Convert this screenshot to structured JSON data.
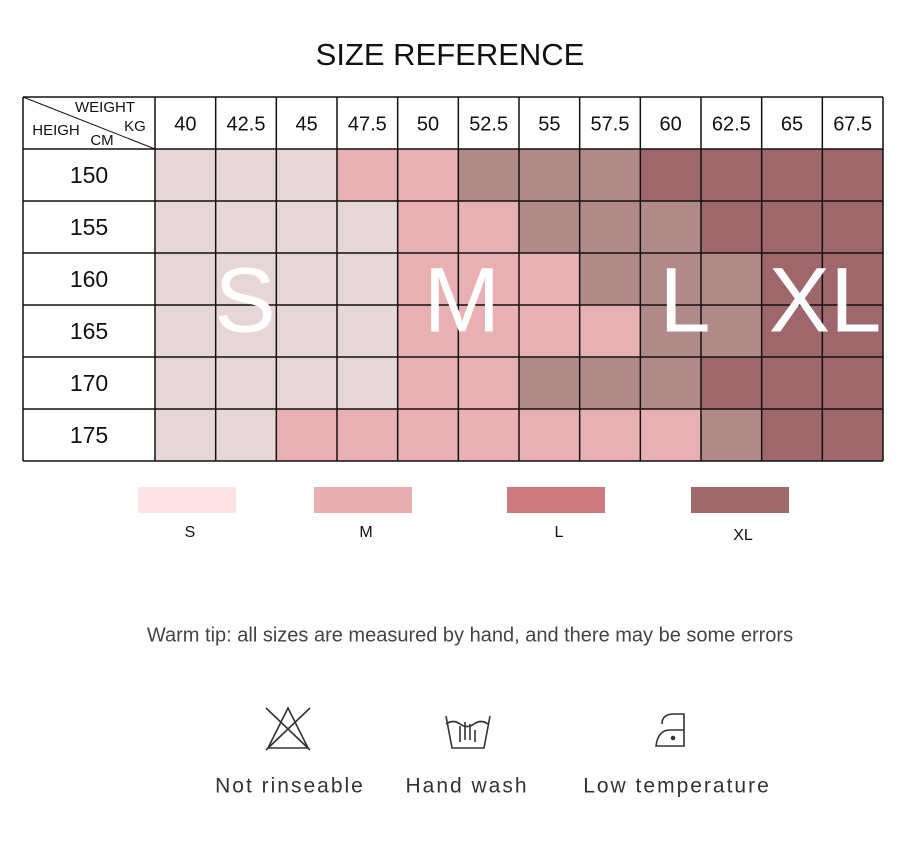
{
  "title": "SIZE REFERENCE",
  "table": {
    "corner": {
      "weight": "WEIGHT",
      "kg": "KG",
      "height": "HEIGH",
      "cm": "CM"
    },
    "weights": [
      "40",
      "42.5",
      "45",
      "47.5",
      "50",
      "52.5",
      "55",
      "57.5",
      "60",
      "62.5",
      "65",
      "67.5"
    ],
    "heights": [
      "150",
      "155",
      "160",
      "165",
      "170",
      "175"
    ],
    "cell_colors": [
      [
        "#e7d6d8",
        "#e7d6d8",
        "#e7d6d8",
        "#e8b0b3",
        "#e8b0b3",
        "#b08a89",
        "#b08a89",
        "#b08a89",
        "#9e676b",
        "#9e676b",
        "#9e676b",
        "#9e676b"
      ],
      [
        "#e7d6d8",
        "#e7d6d8",
        "#e7d6d8",
        "#e7d6d8",
        "#e8b0b3",
        "#e8b0b3",
        "#b08a89",
        "#b08a89",
        "#b08a89",
        "#9e676b",
        "#9e676b",
        "#9e676b"
      ],
      [
        "#e7d6d8",
        "#e7d6d8",
        "#e7d6d8",
        "#e7d6d8",
        "#e8b0b3",
        "#e8b0b3",
        "#e8b0b3",
        "#b08a89",
        "#b08a89",
        "#b08a89",
        "#9e676b",
        "#9e676b"
      ],
      [
        "#e7d6d8",
        "#e7d6d8",
        "#e7d6d8",
        "#e7d6d8",
        "#e8b0b3",
        "#e8b0b3",
        "#e8b0b3",
        "#e8b0b3",
        "#b08a89",
        "#b08a89",
        "#9e676b",
        "#9e676b"
      ],
      [
        "#e7d6d8",
        "#e7d6d8",
        "#e7d6d8",
        "#e7d6d8",
        "#e8b0b3",
        "#e8b0b3",
        "#b08a89",
        "#b08a89",
        "#b08a89",
        "#9e676b",
        "#9e676b",
        "#9e676b"
      ],
      [
        "#e7d6d8",
        "#e7d6d8",
        "#e8b0b3",
        "#e8b0b3",
        "#e8b0b3",
        "#e8b0b3",
        "#e8b0b3",
        "#e8b0b3",
        "#e8b0b3",
        "#b08a89",
        "#9e676b",
        "#9e676b"
      ]
    ],
    "overlay": [
      "S",
      "M",
      "L",
      "XL"
    ]
  },
  "legend": [
    {
      "label": "S",
      "color": "#fde3e5"
    },
    {
      "label": "M",
      "color": "#e8aeb1"
    },
    {
      "label": "L",
      "color": "#cc7a80"
    },
    {
      "label": "XL",
      "color": "#a06a6d"
    }
  ],
  "tip": "Warm tip: all sizes are measured by hand, and there may be some errors",
  "care": [
    "Not rinseable",
    "Hand wash",
    "Low temperature"
  ]
}
